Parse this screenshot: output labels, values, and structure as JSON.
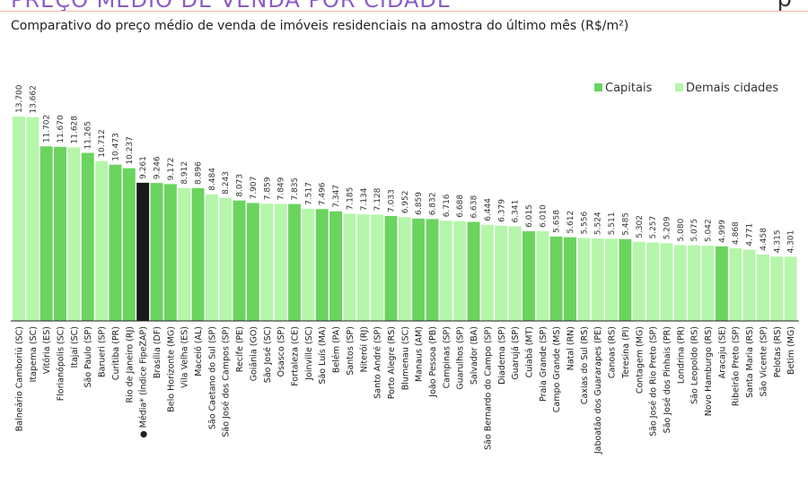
{
  "header": {
    "title": "PREÇO MÉDIO DE VENDA POR CIDADE",
    "logo": "p"
  },
  "subtitle": "Comparativo do preço médio de venda de imóveis residenciais na amostra do último mês (R$/m²)",
  "colors": {
    "capital": "#6ad45e",
    "other": "#b5f6ab",
    "average": "#1a1a1a"
  },
  "chart_data": {
    "type": "bar",
    "title": "",
    "xlabel": "",
    "ylabel": "",
    "ylim": [
      0,
      13700
    ],
    "legend": [
      {
        "key": "capital",
        "label": "Capitais"
      },
      {
        "key": "other",
        "label": "Demais cidades"
      }
    ],
    "legend_position": "top-right",
    "average_marker": "●",
    "bars": [
      {
        "name": "Balneário Camboriú (SC)",
        "label": "13.700",
        "value": 13700,
        "group": "other"
      },
      {
        "name": "Itapema (SC)",
        "label": "13.662",
        "value": 13662,
        "group": "other"
      },
      {
        "name": "Vitória (ES)",
        "label": "11.702",
        "value": 11702,
        "group": "capital"
      },
      {
        "name": "Florianópolis (SC)",
        "label": "11.670",
        "value": 11670,
        "group": "capital"
      },
      {
        "name": "Itajaí (SC)",
        "label": "11.628",
        "value": 11628,
        "group": "other"
      },
      {
        "name": "São Paulo (SP)",
        "label": "11.265",
        "value": 11265,
        "group": "capital"
      },
      {
        "name": "Barueri (SP)",
        "label": "10.712",
        "value": 10712,
        "group": "other"
      },
      {
        "name": "Curitiba (PR)",
        "label": "10.473",
        "value": 10473,
        "group": "capital"
      },
      {
        "name": "Rio de Janeiro (RJ)",
        "label": "10.237",
        "value": 10237,
        "group": "capital"
      },
      {
        "name": "Média* (Índice FipeZAP)",
        "label": "9.261",
        "value": 9261,
        "group": "average"
      },
      {
        "name": "Brasília (DF)",
        "label": "9.246",
        "value": 9246,
        "group": "capital"
      },
      {
        "name": "Belo Horizonte (MG)",
        "label": "9.172",
        "value": 9172,
        "group": "capital"
      },
      {
        "name": "Vila Velha (ES)",
        "label": "8.912",
        "value": 8912,
        "group": "other"
      },
      {
        "name": "Maceió (AL)",
        "label": "8.896",
        "value": 8896,
        "group": "capital"
      },
      {
        "name": "São Caetano do Sul (SP)",
        "label": "8.484",
        "value": 8484,
        "group": "other"
      },
      {
        "name": "São José dos Campos (SP)",
        "label": "8.243",
        "value": 8243,
        "group": "other"
      },
      {
        "name": "Recife (PE)",
        "label": "8.073",
        "value": 8073,
        "group": "capital"
      },
      {
        "name": "Goiânia (GO)",
        "label": "7.907",
        "value": 7907,
        "group": "capital"
      },
      {
        "name": "São José (SC)",
        "label": "7.859",
        "value": 7859,
        "group": "other"
      },
      {
        "name": "Osasco (SP)",
        "label": "7.849",
        "value": 7849,
        "group": "other"
      },
      {
        "name": "Fortaleza (CE)",
        "label": "7.835",
        "value": 7835,
        "group": "capital"
      },
      {
        "name": "Joinville (SC)",
        "label": "7.517",
        "value": 7517,
        "group": "other"
      },
      {
        "name": "São Luís (MA)",
        "label": "7.496",
        "value": 7496,
        "group": "capital"
      },
      {
        "name": "Belém (PA)",
        "label": "7.347",
        "value": 7347,
        "group": "capital"
      },
      {
        "name": "Santos (SP)",
        "label": "7.185",
        "value": 7185,
        "group": "other"
      },
      {
        "name": "Niterói (RJ)",
        "label": "7.134",
        "value": 7134,
        "group": "other"
      },
      {
        "name": "Santo André (SP)",
        "label": "7.128",
        "value": 7128,
        "group": "other"
      },
      {
        "name": "Porto Alegre (RS)",
        "label": "7.033",
        "value": 7033,
        "group": "capital"
      },
      {
        "name": "Blumenau (SC)",
        "label": "6.952",
        "value": 6952,
        "group": "other"
      },
      {
        "name": "Manaus (AM)",
        "label": "6.859",
        "value": 6859,
        "group": "capital"
      },
      {
        "name": "João Pessoa (PB)",
        "label": "6.832",
        "value": 6832,
        "group": "capital"
      },
      {
        "name": "Campinas (SP)",
        "label": "6.716",
        "value": 6716,
        "group": "other"
      },
      {
        "name": "Guarulhos (SP)",
        "label": "6.688",
        "value": 6688,
        "group": "other"
      },
      {
        "name": "Salvador (BA)",
        "label": "6.638",
        "value": 6638,
        "group": "capital"
      },
      {
        "name": "São Bernardo do Campo (SP)",
        "label": "6.444",
        "value": 6444,
        "group": "other"
      },
      {
        "name": "Diadema (SP)",
        "label": "6.379",
        "value": 6379,
        "group": "other"
      },
      {
        "name": "Guarujá (SP)",
        "label": "6.341",
        "value": 6341,
        "group": "other"
      },
      {
        "name": "Cuiabá (MT)",
        "label": "6.015",
        "value": 6015,
        "group": "capital"
      },
      {
        "name": "Praia Grande (SP)",
        "label": "6.010",
        "value": 6010,
        "group": "other"
      },
      {
        "name": "Campo Grande (MS)",
        "label": "5.658",
        "value": 5658,
        "group": "capital"
      },
      {
        "name": "Natal (RN)",
        "label": "5.612",
        "value": 5612,
        "group": "capital"
      },
      {
        "name": "Caxias do Sul (RS)",
        "label": "5.556",
        "value": 5556,
        "group": "other"
      },
      {
        "name": "Jaboatão dos Guararapes (PE)",
        "label": "5.524",
        "value": 5524,
        "group": "other"
      },
      {
        "name": "Canoas (RS)",
        "label": "5.511",
        "value": 5511,
        "group": "other"
      },
      {
        "name": "Teresina (PI)",
        "label": "5.485",
        "value": 5485,
        "group": "capital"
      },
      {
        "name": "Contagem (MG)",
        "label": "5.302",
        "value": 5302,
        "group": "other"
      },
      {
        "name": "São José do Rio Preto (SP)",
        "label": "5.257",
        "value": 5257,
        "group": "other"
      },
      {
        "name": "São José dos Pinhais (PR)",
        "label": "5.209",
        "value": 5209,
        "group": "other"
      },
      {
        "name": "Londrina (PR)",
        "label": "5.080",
        "value": 5080,
        "group": "other"
      },
      {
        "name": "São Leopoldo (RS)",
        "label": "5.075",
        "value": 5075,
        "group": "other"
      },
      {
        "name": "Novo Hamburgo (RS)",
        "label": "5.042",
        "value": 5042,
        "group": "other"
      },
      {
        "name": "Aracaju (SE)",
        "label": "4.999",
        "value": 4999,
        "group": "capital"
      },
      {
        "name": "Ribeirão Preto (SP)",
        "label": "4.868",
        "value": 4868,
        "group": "other"
      },
      {
        "name": "Santa Maria (RS)",
        "label": "4.771",
        "value": 4771,
        "group": "other"
      },
      {
        "name": "São Vicente (SP)",
        "label": "4.458",
        "value": 4458,
        "group": "other"
      },
      {
        "name": "Pelotas (RS)",
        "label": "4.315",
        "value": 4315,
        "group": "other"
      },
      {
        "name": "Betim (MG)",
        "label": "4.301",
        "value": 4301,
        "group": "other"
      }
    ]
  }
}
